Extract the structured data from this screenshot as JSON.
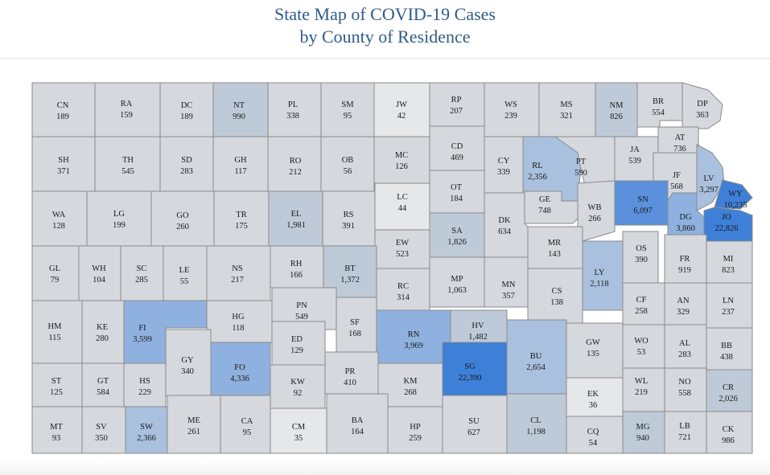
{
  "title": {
    "line1": "State Map of COVID-19 Cases",
    "line2": "by County of Residence"
  },
  "colors": {
    "level0": "#d5d8dd",
    "level0_light": "#e6e7e8",
    "level1": "#bfcad8",
    "level2": "#a9c0de",
    "level3": "#8fb1df",
    "level4": "#5b91dc",
    "level5": "#3e7fd8",
    "border": "#8a8a8a",
    "title": "#2f5b8a"
  },
  "counties": [
    {
      "abbr": "CN",
      "cases": "189",
      "level": 0
    },
    {
      "abbr": "RA",
      "cases": "159",
      "level": 0
    },
    {
      "abbr": "DC",
      "cases": "189",
      "level": 0
    },
    {
      "abbr": "NT",
      "cases": "990",
      "level": 1
    },
    {
      "abbr": "PL",
      "cases": "338",
      "level": 0
    },
    {
      "abbr": "SM",
      "cases": "95",
      "level": 0
    },
    {
      "abbr": "JW",
      "cases": "42",
      "level": -1
    },
    {
      "abbr": "RP",
      "cases": "207",
      "level": 0
    },
    {
      "abbr": "WS",
      "cases": "239",
      "level": 0
    },
    {
      "abbr": "MS",
      "cases": "321",
      "level": 0
    },
    {
      "abbr": "NM",
      "cases": "826",
      "level": 1
    },
    {
      "abbr": "BR",
      "cases": "554",
      "level": 0
    },
    {
      "abbr": "DP",
      "cases": "363",
      "level": 0
    },
    {
      "abbr": "SH",
      "cases": "371",
      "level": 0
    },
    {
      "abbr": "TH",
      "cases": "545",
      "level": 0
    },
    {
      "abbr": "SD",
      "cases": "283",
      "level": 0
    },
    {
      "abbr": "GH",
      "cases": "117",
      "level": 0
    },
    {
      "abbr": "RO",
      "cases": "212",
      "level": 0
    },
    {
      "abbr": "OB",
      "cases": "56",
      "level": 0
    },
    {
      "abbr": "MC",
      "cases": "126",
      "level": 0
    },
    {
      "abbr": "CD",
      "cases": "469",
      "level": 0
    },
    {
      "abbr": "CY",
      "cases": "339",
      "level": 0
    },
    {
      "abbr": "RL",
      "cases": "2,356",
      "level": 2
    },
    {
      "abbr": "PT",
      "cases": "590",
      "level": 0
    },
    {
      "abbr": "JA",
      "cases": "539",
      "level": 0
    },
    {
      "abbr": "AT",
      "cases": "736",
      "level": 0
    },
    {
      "abbr": "JF",
      "cases": "568",
      "level": 0
    },
    {
      "abbr": "LV",
      "cases": "3,297",
      "level": 2
    },
    {
      "abbr": "WY",
      "cases": "10,235",
      "level": 5
    },
    {
      "abbr": "WA",
      "cases": "128",
      "level": 0
    },
    {
      "abbr": "LG",
      "cases": "199",
      "level": 0
    },
    {
      "abbr": "GO",
      "cases": "260",
      "level": 0
    },
    {
      "abbr": "TR",
      "cases": "175",
      "level": 0
    },
    {
      "abbr": "EL",
      "cases": "1,981",
      "level": 1
    },
    {
      "abbr": "RS",
      "cases": "391",
      "level": 0
    },
    {
      "abbr": "LC",
      "cases": "44",
      "level": -1
    },
    {
      "abbr": "OT",
      "cases": "184",
      "level": 0
    },
    {
      "abbr": "GE",
      "cases": "748",
      "level": 0
    },
    {
      "abbr": "WB",
      "cases": "266",
      "level": 0
    },
    {
      "abbr": "SN",
      "cases": "6,097",
      "level": 4
    },
    {
      "abbr": "DG",
      "cases": "3,860",
      "level": 3
    },
    {
      "abbr": "JO",
      "cases": "22,826",
      "level": 5
    },
    {
      "abbr": "SA",
      "cases": "1,826",
      "level": 1
    },
    {
      "abbr": "DK",
      "cases": "634",
      "level": 0
    },
    {
      "abbr": "EW",
      "cases": "523",
      "level": 0
    },
    {
      "abbr": "MR",
      "cases": "143",
      "level": 0
    },
    {
      "abbr": "OS",
      "cases": "390",
      "level": 0
    },
    {
      "abbr": "FR",
      "cases": "919",
      "level": 0
    },
    {
      "abbr": "MI",
      "cases": "823",
      "level": 0
    },
    {
      "abbr": "GL",
      "cases": "79",
      "level": 0
    },
    {
      "abbr": "WH",
      "cases": "104",
      "level": 0
    },
    {
      "abbr": "SC",
      "cases": "285",
      "level": 0
    },
    {
      "abbr": "LE",
      "cases": "55",
      "level": 0
    },
    {
      "abbr": "NS",
      "cases": "217",
      "level": 0
    },
    {
      "abbr": "RH",
      "cases": "166",
      "level": 0
    },
    {
      "abbr": "BT",
      "cases": "1,372",
      "level": 1
    },
    {
      "abbr": "MP",
      "cases": "1,063",
      "level": 0
    },
    {
      "abbr": "MN",
      "cases": "357",
      "level": 0
    },
    {
      "abbr": "LY",
      "cases": "2,118",
      "level": 2
    },
    {
      "abbr": "RC",
      "cases": "314",
      "level": 0
    },
    {
      "abbr": "CS",
      "cases": "138",
      "level": 0
    },
    {
      "abbr": "CF",
      "cases": "258",
      "level": 0
    },
    {
      "abbr": "AN",
      "cases": "329",
      "level": 0
    },
    {
      "abbr": "LN",
      "cases": "237",
      "level": 0
    },
    {
      "abbr": "HM",
      "cases": "115",
      "level": 0
    },
    {
      "abbr": "KE",
      "cases": "280",
      "level": 0
    },
    {
      "abbr": "FI",
      "cases": "3,599",
      "level": 3
    },
    {
      "abbr": "HG",
      "cases": "118",
      "level": 0
    },
    {
      "abbr": "PN",
      "cases": "549",
      "level": 0
    },
    {
      "abbr": "SF",
      "cases": "168",
      "level": 0
    },
    {
      "abbr": "ED",
      "cases": "129",
      "level": 0
    },
    {
      "abbr": "GY",
      "cases": "340",
      "level": 0
    },
    {
      "abbr": "FO",
      "cases": "4,336",
      "level": 3
    },
    {
      "abbr": "RN",
      "cases": "3,969",
      "level": 3
    },
    {
      "abbr": "HV",
      "cases": "1,482",
      "level": 1
    },
    {
      "abbr": "SG",
      "cases": "22,390",
      "level": 5
    },
    {
      "abbr": "BU",
      "cases": "2,654",
      "level": 2
    },
    {
      "abbr": "GW",
      "cases": "135",
      "level": 0
    },
    {
      "abbr": "WO",
      "cases": "53",
      "level": 0
    },
    {
      "abbr": "AL",
      "cases": "283",
      "level": 0
    },
    {
      "abbr": "BB",
      "cases": "438",
      "level": 0
    },
    {
      "abbr": "ST",
      "cases": "125",
      "level": 0
    },
    {
      "abbr": "GT",
      "cases": "584",
      "level": 0
    },
    {
      "abbr": "HS",
      "cases": "229",
      "level": 0
    },
    {
      "abbr": "KW",
      "cases": "92",
      "level": 0
    },
    {
      "abbr": "PR",
      "cases": "410",
      "level": 0
    },
    {
      "abbr": "KM",
      "cases": "268",
      "level": 0
    },
    {
      "abbr": "WL",
      "cases": "219",
      "level": 0
    },
    {
      "abbr": "NO",
      "cases": "558",
      "level": 0
    },
    {
      "abbr": "CR",
      "cases": "2,026",
      "level": 1
    },
    {
      "abbr": "EK",
      "cases": "36",
      "level": -1
    },
    {
      "abbr": "MT",
      "cases": "93",
      "level": 0
    },
    {
      "abbr": "SV",
      "cases": "350",
      "level": 0
    },
    {
      "abbr": "SW",
      "cases": "2,366",
      "level": 2
    },
    {
      "abbr": "ME",
      "cases": "261",
      "level": 0
    },
    {
      "abbr": "CA",
      "cases": "95",
      "level": 0
    },
    {
      "abbr": "CM",
      "cases": "35",
      "level": -1
    },
    {
      "abbr": "BA",
      "cases": "164",
      "level": 0
    },
    {
      "abbr": "HP",
      "cases": "259",
      "level": 0
    },
    {
      "abbr": "SU",
      "cases": "627",
      "level": 0
    },
    {
      "abbr": "CL",
      "cases": "1,198",
      "level": 1
    },
    {
      "abbr": "CQ",
      "cases": "54",
      "level": 0
    },
    {
      "abbr": "MG",
      "cases": "940",
      "level": 1
    },
    {
      "abbr": "LB",
      "cases": "721",
      "level": 0
    },
    {
      "abbr": "CK",
      "cases": "986",
      "level": 0
    }
  ]
}
